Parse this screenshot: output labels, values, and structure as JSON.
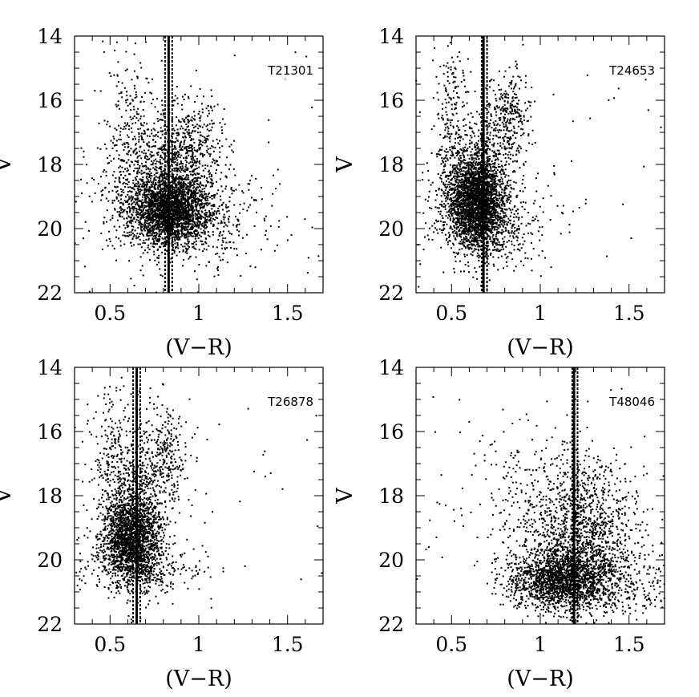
{
  "chart_data": [
    {
      "type": "scatter",
      "panel_label": "T21301",
      "xlabel": "(V−R)",
      "ylabel": "V",
      "xlim": [
        0.3,
        1.7
      ],
      "ylim": [
        22,
        14
      ],
      "x_ticks": [
        "0.5",
        "1",
        "1.5"
      ],
      "y_ticks": [
        "14",
        "16",
        "18",
        "20",
        "22"
      ],
      "vertical_lines": [
        {
          "x": 0.83,
          "style": "solid"
        },
        {
          "x": 0.81,
          "style": "dotted"
        },
        {
          "x": 0.85,
          "style": "dotted"
        }
      ],
      "clusters": [
        {
          "cx": 0.84,
          "cy": 19.4,
          "sx": 0.12,
          "sy": 0.55,
          "n": 2200
        },
        {
          "cx": 0.78,
          "cy": 18.4,
          "sx": 0.17,
          "sy": 0.9,
          "n": 700
        },
        {
          "cx": 0.95,
          "cy": 17.3,
          "sx": 0.1,
          "sy": 0.7,
          "n": 350
        },
        {
          "cx": 0.62,
          "cy": 16.5,
          "sx": 0.07,
          "sy": 1.1,
          "n": 160
        },
        {
          "cx": 0.95,
          "cy": 19.8,
          "sx": 0.25,
          "sy": 0.8,
          "n": 450
        }
      ]
    },
    {
      "type": "scatter",
      "panel_label": "T24653",
      "xlabel": "(V−R)",
      "ylabel": "V",
      "xlim": [
        0.3,
        1.7
      ],
      "ylim": [
        22,
        14
      ],
      "x_ticks": [
        "0.5",
        "1",
        "1.5"
      ],
      "y_ticks": [
        "14",
        "16",
        "18",
        "20",
        "22"
      ],
      "vertical_lines": [
        {
          "x": 0.68,
          "style": "solid"
        },
        {
          "x": 0.67,
          "style": "dotted"
        },
        {
          "x": 0.7,
          "style": "dotted"
        }
      ],
      "clusters": [
        {
          "cx": 0.64,
          "cy": 19.2,
          "sx": 0.08,
          "sy": 0.75,
          "n": 2400
        },
        {
          "cx": 0.62,
          "cy": 18.3,
          "sx": 0.11,
          "sy": 0.9,
          "n": 500
        },
        {
          "cx": 0.82,
          "cy": 16.6,
          "sx": 0.06,
          "sy": 0.8,
          "n": 330
        },
        {
          "cx": 0.5,
          "cy": 16.0,
          "sx": 0.05,
          "sy": 1.0,
          "n": 140
        },
        {
          "cx": 0.75,
          "cy": 19.9,
          "sx": 0.17,
          "sy": 0.6,
          "n": 350
        }
      ]
    },
    {
      "type": "scatter",
      "panel_label": "T26878",
      "xlabel": "(V−R)",
      "ylabel": "V",
      "xlim": [
        0.3,
        1.7
      ],
      "ylim": [
        22,
        14
      ],
      "x_ticks": [
        "0.5",
        "1",
        "1.5"
      ],
      "y_ticks": [
        "14",
        "16",
        "18",
        "20",
        "22"
      ],
      "vertical_lines": [
        {
          "x": 0.65,
          "style": "solid"
        },
        {
          "x": 0.63,
          "style": "dotted"
        },
        {
          "x": 0.67,
          "style": "dotted"
        }
      ],
      "clusters": [
        {
          "cx": 0.62,
          "cy": 19.3,
          "sx": 0.08,
          "sy": 0.7,
          "n": 1800
        },
        {
          "cx": 0.62,
          "cy": 18.0,
          "sx": 0.1,
          "sy": 1.0,
          "n": 500
        },
        {
          "cx": 0.8,
          "cy": 16.8,
          "sx": 0.07,
          "sy": 0.8,
          "n": 280
        },
        {
          "cx": 0.5,
          "cy": 16.3,
          "sx": 0.06,
          "sy": 1.1,
          "n": 120
        },
        {
          "cx": 0.7,
          "cy": 20.3,
          "sx": 0.16,
          "sy": 0.4,
          "n": 300
        }
      ]
    },
    {
      "type": "scatter",
      "panel_label": "T48046",
      "xlabel": "(V−R)",
      "ylabel": "V",
      "xlim": [
        0.3,
        1.7
      ],
      "ylim": [
        22,
        14
      ],
      "x_ticks": [
        "0.5",
        "1",
        "1.5"
      ],
      "y_ticks": [
        "14",
        "16",
        "18",
        "20",
        "22"
      ],
      "vertical_lines": [
        {
          "x": 1.19,
          "style": "solid"
        },
        {
          "x": 1.18,
          "style": "dotted"
        },
        {
          "x": 1.21,
          "style": "dotted"
        }
      ],
      "clusters": [
        {
          "cx": 1.12,
          "cy": 20.6,
          "sx": 0.14,
          "sy": 0.45,
          "n": 1500
        },
        {
          "cx": 1.22,
          "cy": 19.6,
          "sx": 0.15,
          "sy": 0.9,
          "n": 900
        },
        {
          "cx": 1.3,
          "cy": 18.2,
          "sx": 0.15,
          "sy": 0.9,
          "n": 350
        },
        {
          "cx": 0.95,
          "cy": 17.8,
          "sx": 0.17,
          "sy": 1.1,
          "n": 250
        },
        {
          "cx": 1.35,
          "cy": 20.8,
          "sx": 0.22,
          "sy": 0.6,
          "n": 450
        }
      ]
    }
  ]
}
